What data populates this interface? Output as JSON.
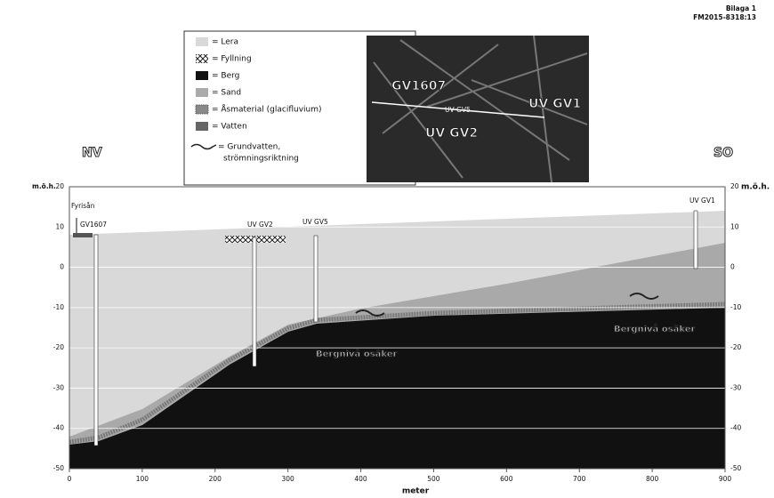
{
  "header": {
    "lines": [
      "Bilaga 1",
      "FM2015-8318:13"
    ]
  },
  "legend": {
    "items": [
      "= Lera",
      "= Fyllning",
      "= Berg",
      "= Sand",
      "= Åsmaterial (glacifluvium)",
      "= Vatten",
      "= Grundvatten,",
      "strömningsriktning"
    ]
  },
  "map": {
    "labels": [
      "GV1607",
      "UV GV5",
      "UV GV2",
      "UV GV1"
    ]
  },
  "section": {
    "left_direction": "NV",
    "right_direction": "SO",
    "y_axis_label": "m.ö.h.",
    "x_axis_label": "meter",
    "xticks": [
      0,
      100,
      200,
      300,
      400,
      500,
      600,
      700,
      800,
      900
    ],
    "yticks": [
      20,
      10,
      0,
      -10,
      -20,
      -30,
      -40,
      -50
    ],
    "wells": [
      "Fyrisån",
      "GV1607",
      "UV GV2",
      "UV GV5",
      "UV GV1"
    ],
    "annotations": [
      "Bergnivå osäker",
      "Bergnivå osäker"
    ]
  }
}
